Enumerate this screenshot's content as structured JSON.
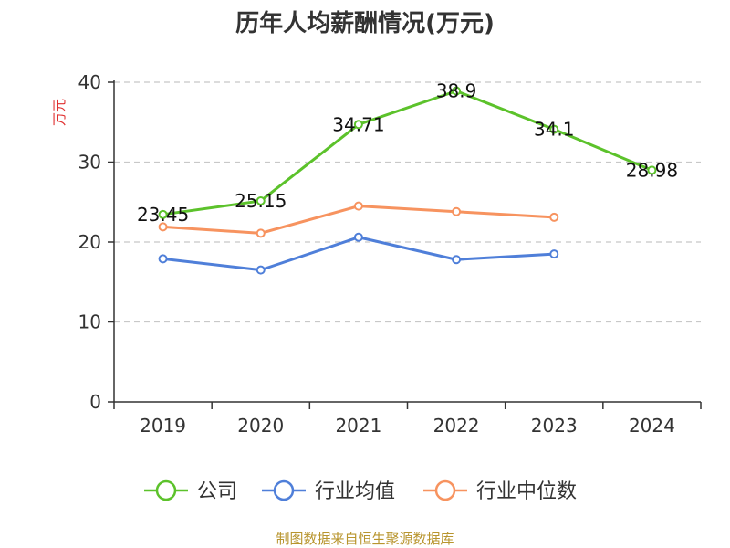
{
  "chart_data": {
    "type": "line",
    "title": "历年人均薪酬情况(万元)",
    "ylabel": "万元",
    "xlabel": "",
    "categories": [
      "2019",
      "2020",
      "2021",
      "2022",
      "2023",
      "2024"
    ],
    "ylim": [
      0,
      40
    ],
    "yticks": [
      "0",
      "10",
      "20",
      "30",
      "40"
    ],
    "grid": true,
    "legend_position": "bottom",
    "series": [
      {
        "name": "公司",
        "color": "#5cc22b",
        "values": [
          23.45,
          25.15,
          34.71,
          38.9,
          34.1,
          28.98
        ],
        "labels": [
          "23.45",
          "25.15",
          "34.71",
          "38.9",
          "34.1",
          "28.98"
        ]
      },
      {
        "name": "行业均值",
        "color": "#4f7fd9",
        "values": [
          17.9,
          16.5,
          20.6,
          17.8,
          18.5,
          null
        ],
        "labels": []
      },
      {
        "name": "行业中位数",
        "color": "#f7935f",
        "values": [
          21.9,
          21.1,
          24.5,
          23.8,
          23.1,
          null
        ],
        "labels": []
      }
    ],
    "source": "制图数据来自恒生聚源数据库"
  }
}
